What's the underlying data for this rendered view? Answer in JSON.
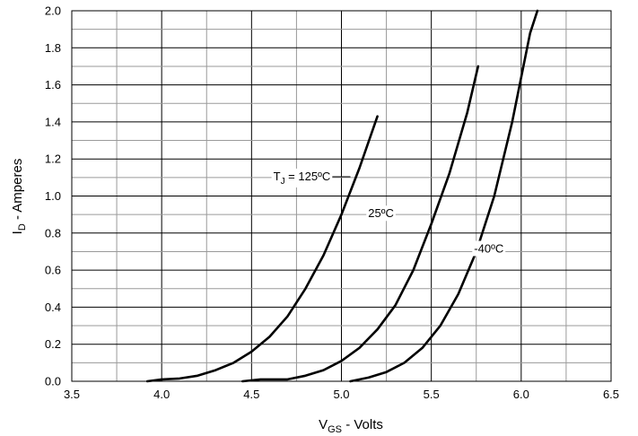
{
  "chart_data": {
    "type": "line",
    "title": "",
    "xlabel": {
      "main": "V",
      "sub": "GS",
      "rest": " - Volts"
    },
    "ylabel": {
      "main": "I",
      "sub": "D",
      "rest": " - Amperes"
    },
    "xlim": [
      3.5,
      6.5
    ],
    "ylim": [
      0.0,
      2.0
    ],
    "grid": true,
    "x_ticks": [
      {
        "value": 3.5,
        "label": "3.5"
      },
      {
        "value": 4.0,
        "label": "4.0"
      },
      {
        "value": 4.5,
        "label": "4.5"
      },
      {
        "value": 5.0,
        "label": "5.0"
      },
      {
        "value": 5.5,
        "label": "5.5"
      },
      {
        "value": 6.0,
        "label": "6.0"
      },
      {
        "value": 6.5,
        "label": "6.5"
      }
    ],
    "y_ticks": [
      {
        "value": 0.0,
        "label": "0.0"
      },
      {
        "value": 0.2,
        "label": "0.2"
      },
      {
        "value": 0.4,
        "label": "0.4"
      },
      {
        "value": 0.6,
        "label": "0.6"
      },
      {
        "value": 0.8,
        "label": "0.8"
      },
      {
        "value": 1.0,
        "label": "1.0"
      },
      {
        "value": 1.2,
        "label": "1.2"
      },
      {
        "value": 1.4,
        "label": "1.4"
      },
      {
        "value": 1.6,
        "label": "1.6"
      },
      {
        "value": 1.8,
        "label": "1.8"
      },
      {
        "value": 2.0,
        "label": "2.0"
      }
    ],
    "minor_grid_x": [
      3.75,
      4.25,
      4.75,
      5.25,
      5.75,
      6.25
    ],
    "minor_grid_y": [
      0.1,
      0.3,
      0.5,
      0.7,
      0.9,
      1.1,
      1.3,
      1.5,
      1.7,
      1.9
    ],
    "series": [
      {
        "x": [
          3.92,
          4.0,
          4.1,
          4.2,
          4.3,
          4.4,
          4.5,
          4.6,
          4.7,
          4.8,
          4.9,
          5.0,
          5.1,
          5.2
        ],
        "y": [
          0.0,
          0.01,
          0.015,
          0.03,
          0.06,
          0.1,
          0.16,
          0.24,
          0.35,
          0.5,
          0.68,
          0.9,
          1.15,
          1.43
        ]
      },
      {
        "x": [
          4.45,
          4.55,
          4.7,
          4.8,
          4.9,
          5.0,
          5.1,
          5.2,
          5.3,
          5.4,
          5.5,
          5.6,
          5.7,
          5.76
        ],
        "y": [
          0.0,
          0.01,
          0.01,
          0.03,
          0.06,
          0.11,
          0.18,
          0.28,
          0.41,
          0.6,
          0.85,
          1.12,
          1.45,
          1.7
        ]
      },
      {
        "x": [
          5.05,
          5.15,
          5.25,
          5.35,
          5.45,
          5.55,
          5.65,
          5.75,
          5.85,
          5.95,
          6.05,
          6.09
        ],
        "y": [
          0.0,
          0.02,
          0.05,
          0.1,
          0.18,
          0.3,
          0.47,
          0.7,
          1.0,
          1.4,
          1.88,
          2.0
        ]
      }
    ],
    "annotations": [
      {
        "label_main": "T",
        "label_sub": "J",
        "label_rest": " = 125ºC",
        "x": 4.78,
        "y": 1.085,
        "line_to_x": 5.05
      },
      {
        "label_main": "25ºC",
        "label_sub": "",
        "label_rest": "",
        "x": 5.22,
        "y": 0.885,
        "line_to_x": null
      },
      {
        "label_main": "-40ºC",
        "label_sub": "",
        "label_rest": "",
        "x": 5.82,
        "y": 0.695,
        "line_to_x": null
      }
    ]
  }
}
